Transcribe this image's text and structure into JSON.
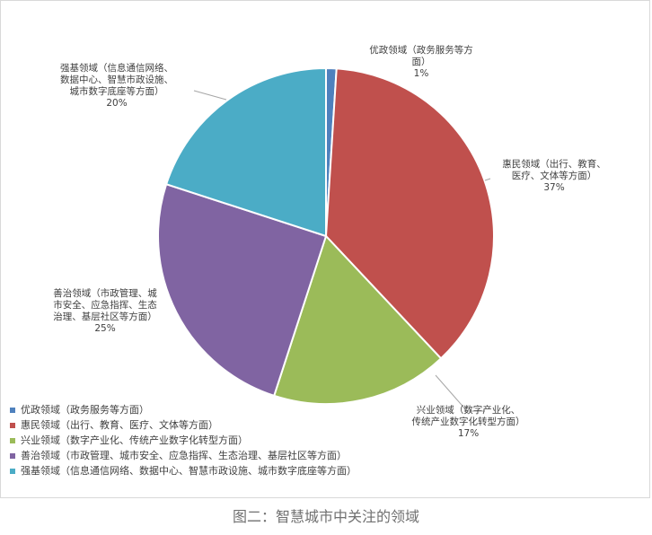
{
  "chart_data": {
    "type": "pie",
    "caption": "图二：智慧城市中关注的领域",
    "slices": [
      {
        "label": "优政领域（政务服务等方面）",
        "value": 1,
        "pct_text": "1%",
        "color": "#4f81bd",
        "label_lines": [
          "优政领域（政务服务等方",
          "面）"
        ]
      },
      {
        "label": "惠民领域（出行、教育、医疗、文体等方面）",
        "value": 37,
        "pct_text": "37%",
        "color": "#c0504d",
        "label_lines": [
          "惠民领域（出行、教育、",
          "医疗、文体等方面）"
        ]
      },
      {
        "label": "兴业领域（数字产业化、传统产业数字化转型方面）",
        "value": 17,
        "pct_text": "17%",
        "color": "#9bbb59",
        "label_lines": [
          "兴业领域（数字产业化、",
          "传统产业数字化转型方面）"
        ]
      },
      {
        "label": "善治领域（市政管理、城市安全、应急指挥、生态治理、基层社区等方面）",
        "value": 25,
        "pct_text": "25%",
        "color": "#8064a2",
        "label_lines": [
          "善治领域（市政管理、城",
          "市安全、应急指挥、生态",
          "治理、基层社区等方面）"
        ]
      },
      {
        "label": "强基领域（信息通信网络、数据中心、智慧市政设施、城市数字底座等方面）",
        "value": 20,
        "pct_text": "20%",
        "color": "#4bacc6",
        "label_lines": [
          "强基领域（信息通信网络、",
          "数据中心、智慧市政设施、",
          "城市数字底座等方面）"
        ]
      }
    ],
    "legend_position": "bottom-left"
  }
}
